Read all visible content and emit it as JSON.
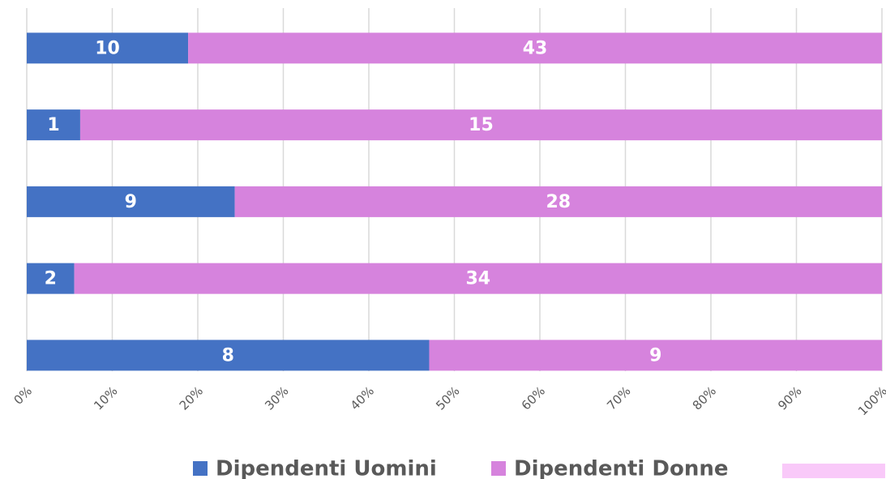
{
  "chart_data": {
    "type": "bar",
    "orientation": "horizontal",
    "stack": "percent",
    "categories": [
      null,
      null,
      null,
      null,
      null
    ],
    "series": [
      {
        "name": "Dipendenti Uomini",
        "color": "#4472c4",
        "values": [
          10,
          1,
          9,
          2,
          8
        ]
      },
      {
        "name": "Dipendenti Donne",
        "color": "#d683dd",
        "values": [
          43,
          15,
          28,
          34,
          9
        ]
      }
    ],
    "xlim": [
      0,
      100
    ],
    "xticks": [
      {
        "value": 0,
        "label": "0%"
      },
      {
        "value": 10,
        "label": "10%"
      },
      {
        "value": 20,
        "label": "20%"
      },
      {
        "value": 30,
        "label": "30%"
      },
      {
        "value": 40,
        "label": "40%"
      },
      {
        "value": 50,
        "label": "50%"
      },
      {
        "value": 60,
        "label": "60%"
      },
      {
        "value": 70,
        "label": "70%"
      },
      {
        "value": 80,
        "label": "80%"
      },
      {
        "value": 90,
        "label": "90%"
      },
      {
        "value": 100,
        "label": "100%"
      }
    ],
    "grid": true,
    "legend": "bottom"
  }
}
